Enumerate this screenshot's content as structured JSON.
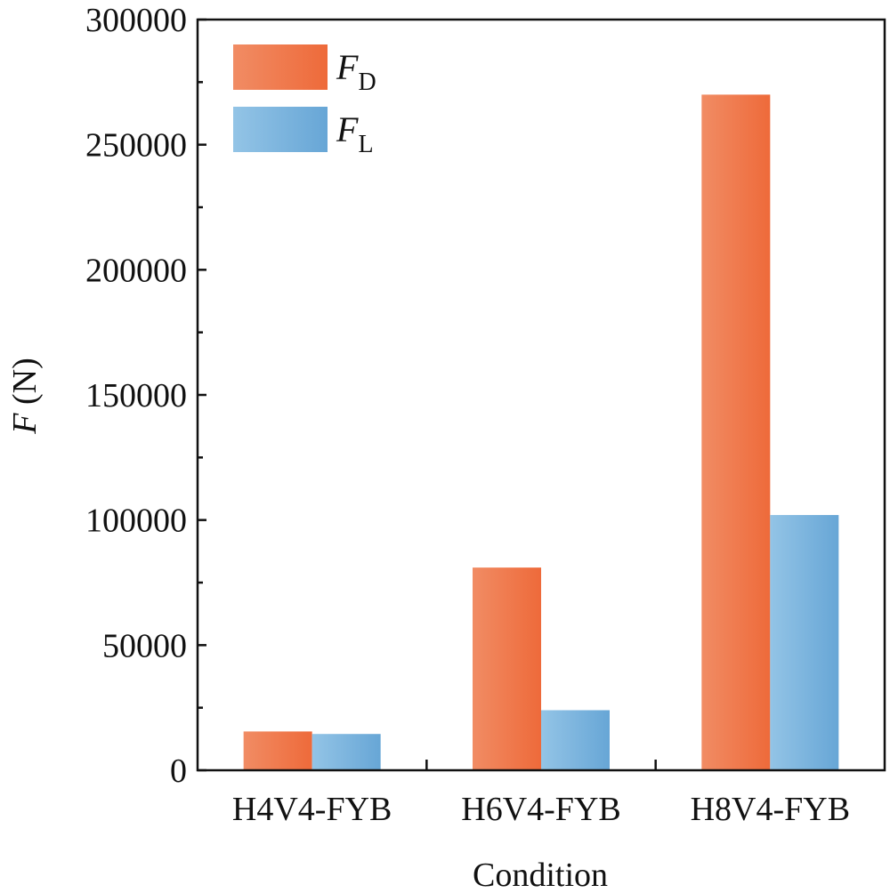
{
  "chart_data": {
    "type": "bar",
    "categories": [
      "H4V4-FYB",
      "H6V4-FYB",
      "H8V4-FYB"
    ],
    "series": [
      {
        "name": "F_D",
        "label_main": "F",
        "label_sub": "D",
        "color": "#EE6A3A",
        "color_light": "#F18C64",
        "values": [
          15500,
          81000,
          270000
        ]
      },
      {
        "name": "F_L",
        "label_main": "F",
        "label_sub": "L",
        "color": "#67A6D6",
        "color_light": "#93C4E6",
        "values": [
          14500,
          24000,
          102000
        ]
      }
    ],
    "xlabel": "Condition",
    "ylabel_main": "F",
    "ylabel_unit": " (N)",
    "ylim": [
      0,
      300000
    ],
    "yticks": [
      "0",
      "50000",
      "100000",
      "150000",
      "200000",
      "250000",
      "300000"
    ],
    "ytick_values": [
      0,
      50000,
      100000,
      150000,
      200000,
      250000,
      300000
    ],
    "legend_position": "top-left",
    "grid": false
  }
}
